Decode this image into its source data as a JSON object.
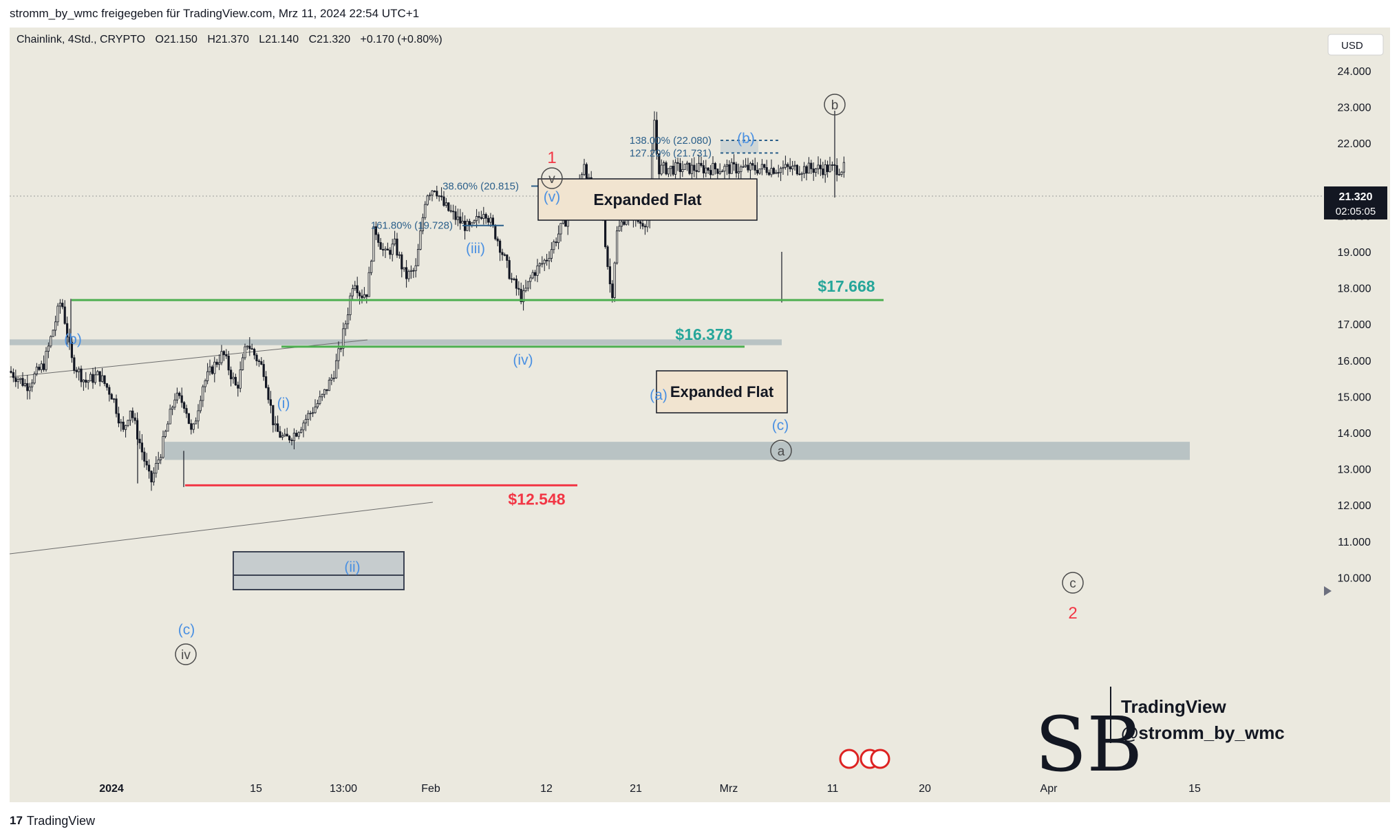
{
  "header": {
    "publish_line": "stromm_by_wmc freigegeben für TradingView.com, Mrz 11, 2024 22:54 UTC+1"
  },
  "legend": {
    "symbol": "Chainlink, 4Std., CRYPTO",
    "open": "O21.150",
    "high": "H21.370",
    "low": "L21.140",
    "close": "C21.320",
    "change": "+0.170 (+0.80%)"
  },
  "currency_button": "USD",
  "last_price": {
    "value": "21.320",
    "countdown": "02:05:05"
  },
  "footer": {
    "brand": "TradingView"
  },
  "watermark": {
    "line1": "TradingView",
    "line2": "@stromm_by_wmc"
  },
  "colors": {
    "background": "#ebe9df",
    "candle": "#131722",
    "wave_blue": "#4a90e2",
    "wave_red": "#f23645",
    "support_green": "#4caf50",
    "price_green": "#26a69a",
    "zone_gray": "#b9c3c4",
    "fib_blue": "#2b5f8a"
  },
  "chart_data": {
    "type": "candlestick",
    "title": "Chainlink, 4Std., CRYPTO",
    "y_axis": {
      "ticks": [
        "24.000",
        "23.000",
        "22.000",
        "20.000",
        "19.000",
        "18.000",
        "17.000",
        "16.000",
        "15.000",
        "14.000",
        "13.000",
        "12.000",
        "11.000",
        "10.000"
      ],
      "range": [
        9.3,
        24.7
      ]
    },
    "x_axis": {
      "ticks": [
        "2024",
        "15",
        "13:00",
        "Feb",
        "12",
        "21",
        "Mrz",
        "11",
        "20",
        "Apr",
        "15"
      ]
    },
    "price_path": [
      [
        0,
        15.7
      ],
      [
        25,
        15.3
      ],
      [
        50,
        15.9
      ],
      [
        75,
        17.7
      ],
      [
        90,
        16.0
      ],
      [
        110,
        15.4
      ],
      [
        130,
        15.6
      ],
      [
        150,
        15.0
      ],
      [
        165,
        14.0
      ],
      [
        175,
        14.7
      ],
      [
        195,
        13.3
      ],
      [
        205,
        12.6
      ],
      [
        220,
        13.5
      ],
      [
        240,
        15.0
      ],
      [
        255,
        14.8
      ],
      [
        265,
        13.9
      ],
      [
        280,
        15.3
      ],
      [
        295,
        15.8
      ],
      [
        310,
        16.2
      ],
      [
        330,
        15.2
      ],
      [
        345,
        16.5
      ],
      [
        370,
        15.7
      ],
      [
        385,
        14.1
      ],
      [
        400,
        13.8
      ],
      [
        415,
        14.0
      ],
      [
        435,
        14.5
      ],
      [
        455,
        15.0
      ],
      [
        470,
        15.6
      ],
      [
        480,
        16.3
      ],
      [
        490,
        17.2
      ],
      [
        500,
        18.3
      ],
      [
        510,
        17.8
      ],
      [
        520,
        17.9
      ],
      [
        530,
        19.7
      ],
      [
        545,
        18.9
      ],
      [
        560,
        19.2
      ],
      [
        575,
        18.3
      ],
      [
        590,
        18.5
      ],
      [
        605,
        20.6
      ],
      [
        618,
        20.8
      ],
      [
        630,
        20.3
      ],
      [
        650,
        19.9
      ],
      [
        670,
        19.6
      ],
      [
        690,
        20.2
      ],
      [
        710,
        19.3
      ],
      [
        730,
        18.2
      ],
      [
        745,
        17.7
      ],
      [
        760,
        18.4
      ],
      [
        780,
        18.8
      ],
      [
        800,
        19.6
      ],
      [
        820,
        20.3
      ],
      [
        835,
        21.5
      ],
      [
        845,
        20.6
      ],
      [
        860,
        20.4
      ],
      [
        868,
        18.8
      ],
      [
        875,
        17.7
      ],
      [
        882,
        19.5
      ],
      [
        900,
        20.2
      ],
      [
        915,
        19.8
      ],
      [
        930,
        19.9
      ],
      [
        936,
        22.9
      ],
      [
        942,
        21.3
      ]
    ],
    "horizontal_levels": [
      {
        "label": "$17.668",
        "value": 17.668,
        "color": "green"
      },
      {
        "label": "$16.378",
        "value": 16.378,
        "color": "green"
      },
      {
        "label": "$12.548",
        "value": 12.548,
        "color": "red"
      }
    ],
    "fib_levels": [
      {
        "label": "138.00% (22.080)",
        "value": 22.08
      },
      {
        "label": "127.20% (21.731)",
        "value": 21.731
      },
      {
        "label": "38.60% (20.815)",
        "value": 20.815
      },
      {
        "label": "161.80% (19.728)",
        "value": 19.728
      }
    ],
    "zones": [
      {
        "from": 16.42,
        "to": 16.58
      },
      {
        "from": 13.25,
        "to": 13.75
      }
    ],
    "annotations": {
      "boxes": [
        "Expanded Flat",
        "Expanded Flat"
      ],
      "wave_labels_blue": [
        "(b)",
        "(i)",
        "(ii)",
        "(iii)",
        "(iv)",
        "(v)",
        "(c)",
        "(a)",
        "(b)",
        "(c)"
      ],
      "wave_labels_circled": [
        "iv",
        "v",
        "a",
        "b",
        "c"
      ],
      "wave_labels_red": [
        "1",
        "2"
      ]
    }
  }
}
